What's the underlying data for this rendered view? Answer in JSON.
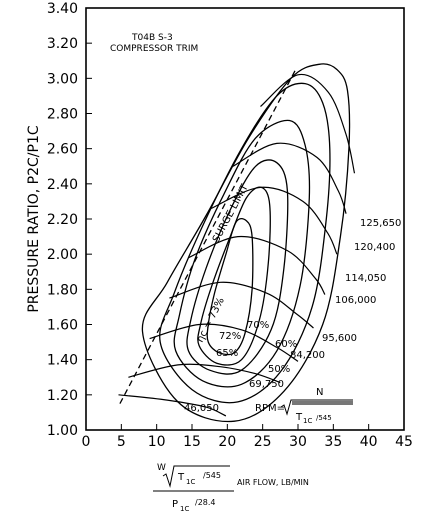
{
  "chart_data": {
    "type": "line",
    "title": "T04B S-3",
    "subtitle": "COMPRESSOR TRIM",
    "ylabel": "PRESSURE RATIO, P2C/P1C",
    "xlabel": {
      "numerator_w": "W",
      "numerator_sqrt": "T",
      "numerator_sub": "1C",
      "numerator_div": "/545",
      "denominator": "P",
      "denominator_sub": "1C",
      "denominator_div": "/28.4",
      "units": "AIR FLOW, LB/MIN"
    },
    "xlim": [
      0,
      45
    ],
    "ylim": [
      1.0,
      3.4
    ],
    "xticks": [
      0,
      5,
      10,
      15,
      20,
      25,
      30,
      35,
      40,
      45
    ],
    "yticks": [
      "1.00",
      "1.20",
      "1.40",
      "1.60",
      "1.80",
      "2.00",
      "2.20",
      "2.40",
      "2.60",
      "2.80",
      "3.00",
      "3.20",
      "3.40"
    ],
    "rpm_formula": {
      "prefix": "RPM=",
      "numerator": "N",
      "denominator": "T",
      "denominator_sub": "1C",
      "denominator_div": "/545"
    },
    "surge_limit": {
      "label": "SURGE LIMIT",
      "points": [
        [
          4.8,
          1.15
        ],
        [
          29.8,
          3.06
        ]
      ]
    },
    "speed_lines": [
      {
        "rpm": "46,050",
        "points": [
          [
            4.6,
            1.2
          ],
          [
            11.5,
            1.17
          ],
          [
            17,
            1.13
          ],
          [
            19.8,
            1.08
          ]
        ]
      },
      {
        "rpm": "69,750",
        "points": [
          [
            6,
            1.3
          ],
          [
            13,
            1.37
          ],
          [
            19,
            1.36
          ],
          [
            24,
            1.32
          ],
          [
            27.5,
            1.27
          ]
        ]
      },
      {
        "rpm": "84,200",
        "points": [
          [
            9,
            1.52
          ],
          [
            16,
            1.6
          ],
          [
            22,
            1.57
          ],
          [
            27,
            1.47
          ],
          [
            30,
            1.39
          ]
        ]
      },
      {
        "rpm": "95,600",
        "points": [
          [
            11.8,
            1.75
          ],
          [
            19,
            1.84
          ],
          [
            25.5,
            1.78
          ],
          [
            29.8,
            1.66
          ],
          [
            32.2,
            1.58
          ]
        ]
      },
      {
        "rpm": "106,000",
        "points": [
          [
            14.5,
            1.98
          ],
          [
            21.5,
            2.1
          ],
          [
            28.5,
            2.02
          ],
          [
            32.5,
            1.86
          ],
          [
            33.8,
            1.77
          ]
        ]
      },
      {
        "rpm": "114,050",
        "points": [
          [
            17.7,
            2.26
          ],
          [
            24.7,
            2.38
          ],
          [
            30.7,
            2.3
          ],
          [
            34.2,
            2.12
          ],
          [
            35.5,
            2.0
          ]
        ]
      },
      {
        "rpm": "120,400",
        "points": [
          [
            20.8,
            2.5
          ],
          [
            27,
            2.63
          ],
          [
            32.7,
            2.55
          ],
          [
            35.7,
            2.36
          ],
          [
            36.8,
            2.23
          ]
        ]
      },
      {
        "rpm": "125,650",
        "points": [
          [
            24.7,
            2.84
          ],
          [
            30,
            3.02
          ],
          [
            34.3,
            2.92
          ],
          [
            36.8,
            2.68
          ],
          [
            38,
            2.46
          ]
        ]
      }
    ],
    "efficiency_islands": [
      {
        "label": "73%",
        "points": [
          [
            17.3,
            1.5
          ],
          [
            18.8,
            1.44
          ],
          [
            21,
            1.44
          ],
          [
            22.5,
            1.55
          ],
          [
            23.5,
            1.8
          ],
          [
            23.5,
            2.1
          ],
          [
            22.7,
            2.19
          ],
          [
            21.2,
            2.18
          ],
          [
            19.8,
            2.0
          ],
          [
            18.2,
            1.78
          ],
          [
            17.3,
            1.6
          ]
        ]
      },
      {
        "label": "72%",
        "points": [
          [
            16,
            1.48
          ],
          [
            18.5,
            1.38
          ],
          [
            22,
            1.4
          ],
          [
            24.5,
            1.62
          ],
          [
            25.8,
            1.95
          ],
          [
            26,
            2.28
          ],
          [
            24.8,
            2.38
          ],
          [
            22.7,
            2.32
          ],
          [
            20.4,
            2.1
          ],
          [
            17.8,
            1.82
          ],
          [
            16.2,
            1.6
          ]
        ]
      },
      {
        "label": "70%",
        "points": [
          [
            14.5,
            1.45
          ],
          [
            17.5,
            1.34
          ],
          [
            22,
            1.34
          ],
          [
            26.2,
            1.57
          ],
          [
            28,
            1.92
          ],
          [
            28.5,
            2.36
          ],
          [
            27,
            2.52
          ],
          [
            24,
            2.5
          ],
          [
            20.5,
            2.26
          ],
          [
            17,
            1.92
          ],
          [
            14.8,
            1.62
          ]
        ]
      },
      {
        "label": "65%",
        "points": [
          [
            12.7,
            1.45
          ],
          [
            16.5,
            1.28
          ],
          [
            22,
            1.26
          ],
          [
            27,
            1.45
          ],
          [
            30.3,
            1.82
          ],
          [
            31.6,
            2.32
          ],
          [
            31,
            2.62
          ],
          [
            28.8,
            2.76
          ],
          [
            24,
            2.66
          ],
          [
            19.5,
            2.34
          ],
          [
            15.5,
            1.98
          ],
          [
            13.2,
            1.65
          ]
        ]
      },
      {
        "label": "60%",
        "points": [
          [
            10.5,
            1.5
          ],
          [
            15,
            1.23
          ],
          [
            21.5,
            1.16
          ],
          [
            27.5,
            1.33
          ],
          [
            32,
            1.7
          ],
          [
            34,
            2.2
          ],
          [
            34.5,
            2.6
          ],
          [
            33.5,
            2.86
          ],
          [
            31,
            2.97
          ],
          [
            27,
            2.9
          ],
          [
            22,
            2.6
          ],
          [
            16.5,
            2.16
          ],
          [
            12.5,
            1.78
          ]
        ]
      },
      {
        "label": "50%",
        "points": [
          [
            8,
            1.56
          ],
          [
            13,
            1.16
          ],
          [
            21,
            1.05
          ],
          [
            28,
            1.22
          ],
          [
            33.5,
            1.6
          ],
          [
            36,
            2.1
          ],
          [
            37.2,
            2.6
          ],
          [
            37,
            2.93
          ],
          [
            35.5,
            3.05
          ],
          [
            33,
            3.08
          ],
          [
            29,
            3.0
          ],
          [
            23,
            2.66
          ],
          [
            17,
            2.22
          ],
          [
            11.5,
            1.84
          ]
        ]
      }
    ],
    "rpm_labels": [
      "125,650",
      "120,400",
      "114,050",
      "106,000",
      "95,600",
      "84,200",
      "69,750",
      "46,050"
    ],
    "efficiency_labels": [
      "ηc = 73%",
      "72%",
      "70%",
      "65%",
      "60%",
      "50%"
    ]
  }
}
